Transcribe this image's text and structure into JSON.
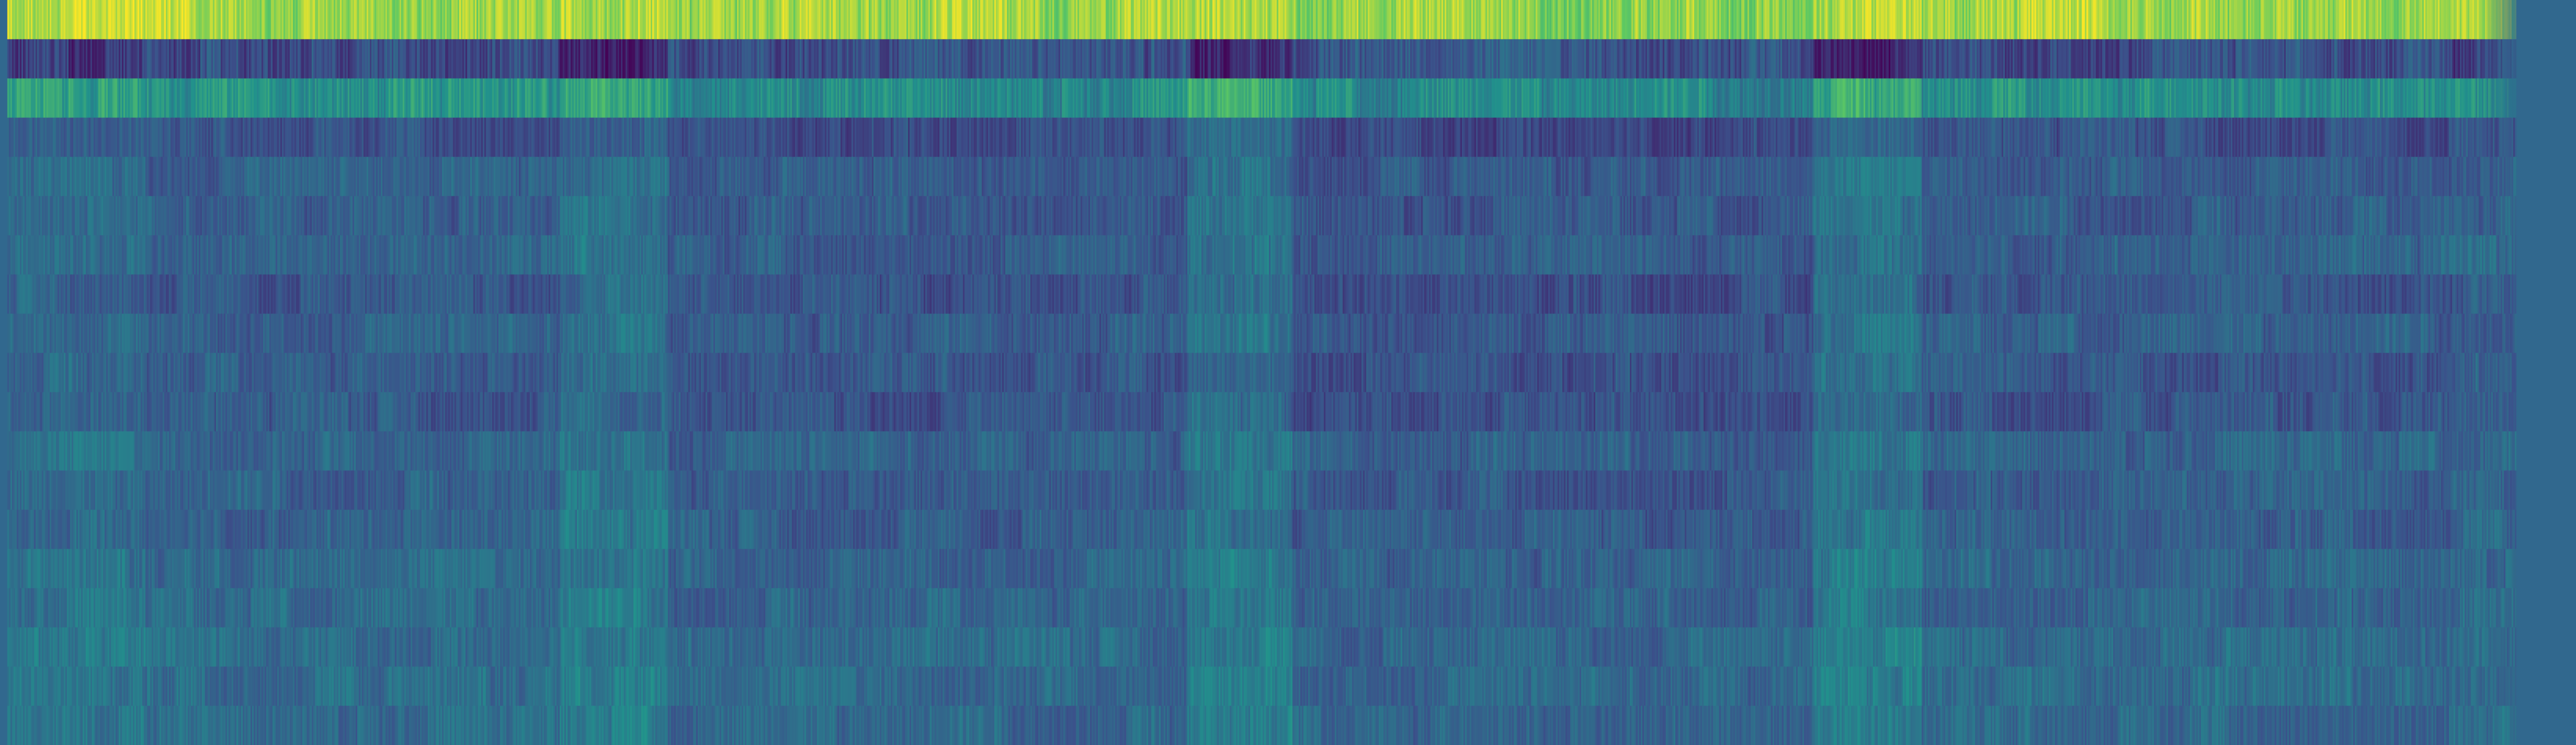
{
  "chart_data": {
    "type": "heatmap",
    "title": "",
    "xlabel": "",
    "ylabel": "",
    "grid": false,
    "legend": "none",
    "colormap": "viridis",
    "value_range": [
      0,
      1
    ],
    "colormap_stops": [
      "#440154",
      "#3b528b",
      "#21918c",
      "#5ec962",
      "#fde725"
    ],
    "background_color": "#31688e",
    "row_count": 19,
    "rows": [
      {
        "row": 1,
        "mean": 0.86,
        "spread": 0.09
      },
      {
        "row": 2,
        "mean": 0.21,
        "spread": 0.08
      },
      {
        "row": 3,
        "mean": 0.52,
        "spread": 0.08
      },
      {
        "row": 4,
        "mean": 0.27,
        "spread": 0.06
      },
      {
        "row": 5,
        "mean": 0.32,
        "spread": 0.06
      },
      {
        "row": 6,
        "mean": 0.31,
        "spread": 0.06
      },
      {
        "row": 7,
        "mean": 0.33,
        "spread": 0.06
      },
      {
        "row": 8,
        "mean": 0.29,
        "spread": 0.06
      },
      {
        "row": 9,
        "mean": 0.32,
        "spread": 0.06
      },
      {
        "row": 10,
        "mean": 0.3,
        "spread": 0.06
      },
      {
        "row": 11,
        "mean": 0.29,
        "spread": 0.06
      },
      {
        "row": 12,
        "mean": 0.34,
        "spread": 0.06
      },
      {
        "row": 13,
        "mean": 0.32,
        "spread": 0.06
      },
      {
        "row": 14,
        "mean": 0.33,
        "spread": 0.06
      },
      {
        "row": 15,
        "mean": 0.35,
        "spread": 0.06
      },
      {
        "row": 16,
        "mean": 0.35,
        "spread": 0.06
      },
      {
        "row": 17,
        "mean": 0.37,
        "spread": 0.06
      },
      {
        "row": 18,
        "mean": 0.37,
        "spread": 0.06
      },
      {
        "row": 19,
        "mean": 0.36,
        "spread": 0.06
      }
    ],
    "column_segments": [
      {
        "from": 0.0,
        "to": 0.055,
        "offset": 0.03
      },
      {
        "from": 0.055,
        "to": 0.22,
        "offset": -0.01
      },
      {
        "from": 0.22,
        "to": 0.263,
        "offset": 0.06
      },
      {
        "from": 0.263,
        "to": 0.47,
        "offset": -0.03
      },
      {
        "from": 0.47,
        "to": 0.512,
        "offset": 0.06
      },
      {
        "from": 0.512,
        "to": 0.72,
        "offset": -0.04
      },
      {
        "from": 0.72,
        "to": 0.763,
        "offset": 0.06
      },
      {
        "from": 0.763,
        "to": 0.975,
        "offset": -0.02
      }
    ]
  }
}
